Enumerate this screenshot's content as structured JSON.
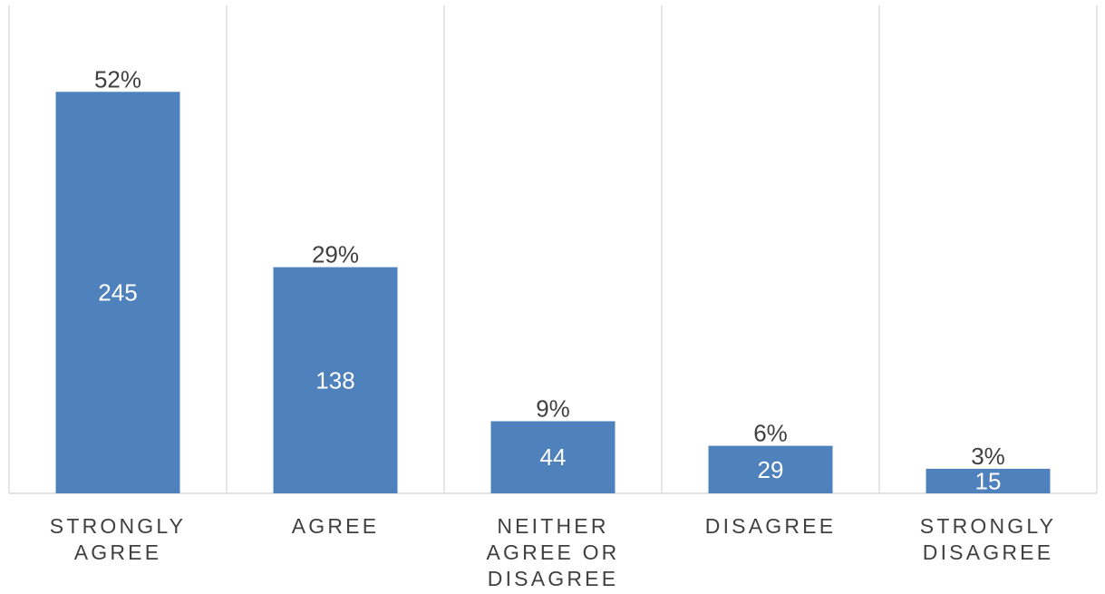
{
  "chart_data": {
    "type": "bar",
    "categories": [
      [
        "STRONGLY",
        "AGREE"
      ],
      [
        "AGREE"
      ],
      [
        "NEITHER",
        "AGREE OR",
        "DISAGREE"
      ],
      [
        "DISAGREE"
      ],
      [
        "STRONGLY",
        "DISAGREE"
      ]
    ],
    "values": [
      245,
      138,
      44,
      29,
      15
    ],
    "percent_labels": [
      "52%",
      "29%",
      "9%",
      "6%",
      "3%"
    ],
    "title": "",
    "xlabel": "",
    "ylabel": "",
    "ylim": [
      0,
      300
    ],
    "grid": "vertical category separators",
    "legend": "none",
    "colors": {
      "bar": "#4f81bd",
      "gridline": "#d9d9d9",
      "label_text": "#404040",
      "inner_label_text": "#ffffff"
    }
  }
}
